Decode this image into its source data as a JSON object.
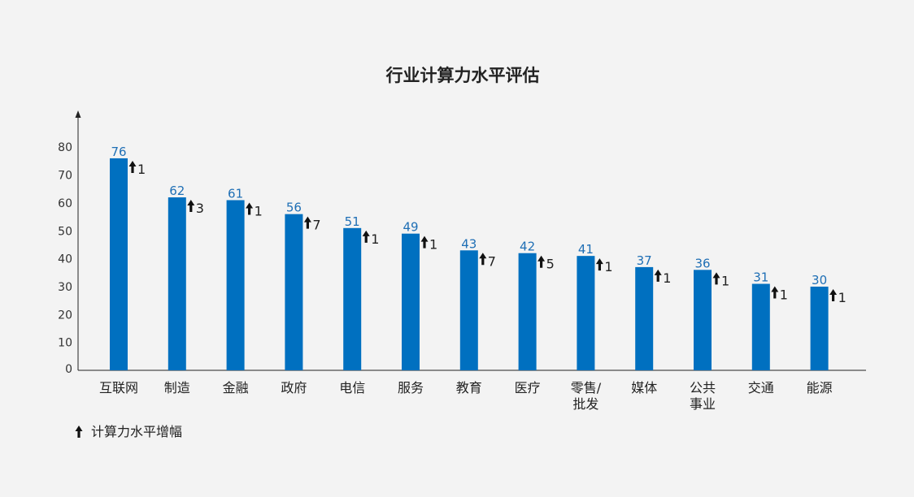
{
  "chart_data": {
    "type": "bar",
    "title": "行业计算力水平评估",
    "categories": [
      [
        "互联网"
      ],
      [
        "制造"
      ],
      [
        "金融"
      ],
      [
        "政府"
      ],
      [
        "电信"
      ],
      [
        "服务"
      ],
      [
        "教育"
      ],
      [
        "医疗"
      ],
      [
        "零售/",
        "批发"
      ],
      [
        "媒体"
      ],
      [
        "公共",
        "事业"
      ],
      [
        "交通"
      ],
      [
        "能源"
      ]
    ],
    "values": [
      76,
      62,
      61,
      56,
      51,
      49,
      43,
      42,
      41,
      37,
      36,
      31,
      30
    ],
    "increase": [
      1,
      3,
      1,
      7,
      1,
      1,
      7,
      5,
      1,
      1,
      1,
      1,
      1
    ],
    "ylim": [
      0,
      90
    ],
    "yticks": [
      0,
      10,
      20,
      30,
      40,
      50,
      60,
      70,
      80
    ],
    "legend": {
      "label": "计算力水平增幅",
      "icon": "up-arrow-icon",
      "position": "bottom-left"
    },
    "colors": {
      "bar": "#0070c0",
      "value_label": "#1f6fb5",
      "arrow": "#111111"
    }
  }
}
